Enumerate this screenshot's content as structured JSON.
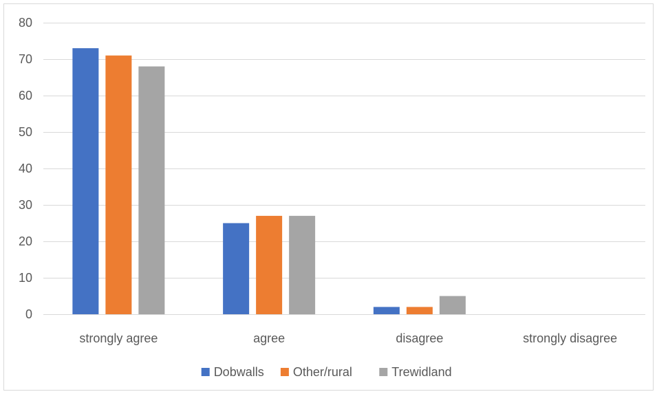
{
  "chart_data": {
    "type": "bar",
    "title": "",
    "xlabel": "",
    "ylabel": "",
    "categories": [
      "strongly agree",
      "agree",
      "disagree",
      "strongly disagree"
    ],
    "series": [
      {
        "name": "Dobwalls",
        "values": [
          73,
          25,
          2,
          0
        ],
        "color": "#4472C4"
      },
      {
        "name": "Other/rural",
        "values": [
          71,
          27,
          2,
          0
        ],
        "color": "#ED7D31"
      },
      {
        "name": "Trewidland",
        "values": [
          68,
          27,
          5,
          0
        ],
        "color": "#A5A5A5"
      }
    ],
    "ylim": [
      0,
      80
    ],
    "yticks": [
      0,
      10,
      20,
      30,
      40,
      50,
      60,
      70,
      80
    ],
    "grid": true,
    "legend_position": "bottom",
    "gridline_color": "#d9d9d9",
    "axis_label_color": "#595959"
  }
}
